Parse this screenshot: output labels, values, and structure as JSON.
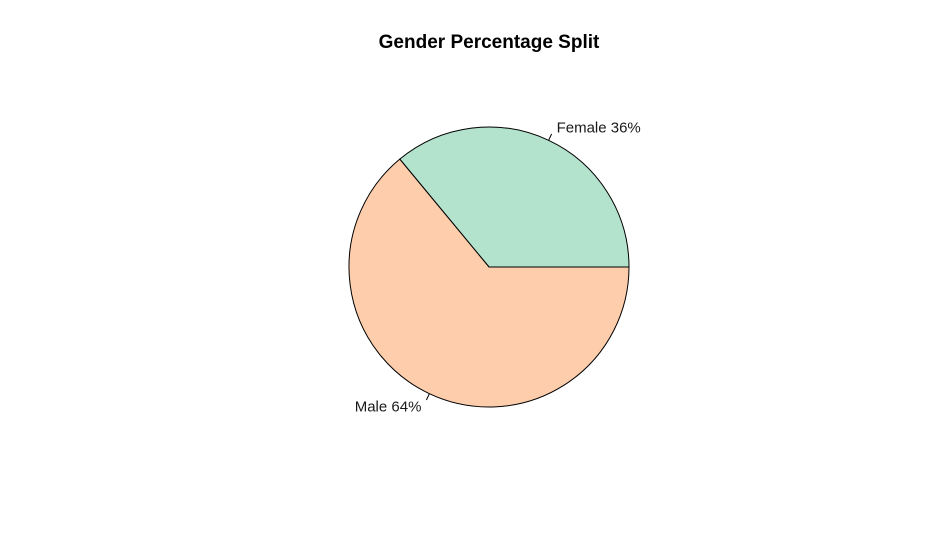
{
  "chart_data": {
    "type": "pie",
    "title": "Gender Percentage Split",
    "slices": [
      {
        "label": "Female",
        "value": 36,
        "display": "Female  36%",
        "color": "#b3e2cd"
      },
      {
        "label": "Male",
        "value": 64,
        "display": "Male  64%",
        "color": "#fdcdac"
      }
    ],
    "legend": "none"
  }
}
